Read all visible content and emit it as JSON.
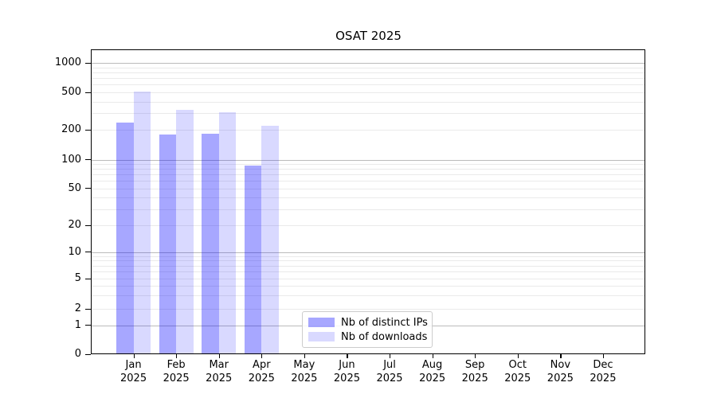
{
  "chart_data": {
    "type": "bar",
    "title": "OSAT 2025",
    "categories": [
      "Jan",
      "Feb",
      "Mar",
      "Apr",
      "May",
      "Jun",
      "Jul",
      "Aug",
      "Sep",
      "Oct",
      "Nov",
      "Dec"
    ],
    "category_year": "2025",
    "series": [
      {
        "name": "Nb of distinct IPs",
        "color": "rgba(0,0,255,0.345)",
        "values": [
          240,
          180,
          183,
          87,
          0,
          0,
          0,
          0,
          0,
          0,
          0,
          0
        ]
      },
      {
        "name": "Nb of downloads",
        "color": "rgba(0,0,255,0.15)",
        "values": [
          505,
          325,
          310,
          223,
          0,
          0,
          0,
          0,
          0,
          0,
          0,
          0
        ]
      }
    ],
    "y_ticks": [
      0,
      1,
      2,
      5,
      10,
      20,
      50,
      100,
      200,
      500,
      1000
    ],
    "y_scale": "symlog",
    "ylim": [
      0,
      1400
    ],
    "grid": true,
    "legend_position": "lower center",
    "colors": {
      "major_grid": "#bbbbbb",
      "minor_grid": "#eaeaea",
      "axis_frame": "#000000",
      "text": "#000000",
      "background": "#ffffff"
    }
  }
}
